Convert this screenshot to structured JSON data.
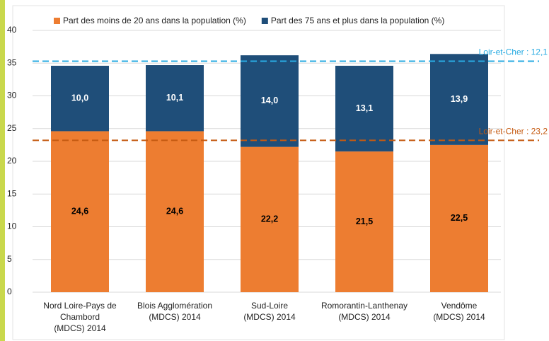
{
  "chart_data": {
    "type": "bar",
    "stacked": true,
    "categories": [
      [
        "Nord Loire-Pays de",
        "Chambord",
        "(MDCS) 2014"
      ],
      [
        "Blois Agglomération",
        "(MDCS) 2014"
      ],
      [
        "Sud-Loire",
        "(MDCS) 2014"
      ],
      [
        "Romorantin-Lanthenay",
        "(MDCS) 2014"
      ],
      [
        "Vendôme",
        "(MDCS) 2014"
      ]
    ],
    "series": [
      {
        "name": "Part des moins de 20 ans dans la population (%)",
        "color": "#ed7d31",
        "label_color": "#000000",
        "values": [
          24.6,
          24.6,
          22.2,
          21.5,
          22.5
        ],
        "value_labels": [
          "24,6",
          "24,6",
          "22,2",
          "21,5",
          "22,5"
        ]
      },
      {
        "name": "Part des 75 ans et plus dans la population (%)",
        "color": "#1f4e79",
        "label_color": "#ffffff",
        "values": [
          10.0,
          10.1,
          14.0,
          13.1,
          13.9
        ],
        "value_labels": [
          "10,0",
          "10,1",
          "14,0",
          "13,1",
          "13,9"
        ]
      }
    ],
    "reference_lines": [
      {
        "label": "Loir-et-Cher : 23,2",
        "value": 23.2,
        "color": "#c55a11"
      },
      {
        "label": "Loir-et-Cher : 12,1",
        "value": 12.1,
        "color": "#29abe2"
      }
    ],
    "ylim": [
      0,
      40
    ],
    "yticks": [
      0,
      5,
      10,
      15,
      20,
      25,
      30,
      35,
      40
    ],
    "grid": true,
    "legend": "top"
  }
}
